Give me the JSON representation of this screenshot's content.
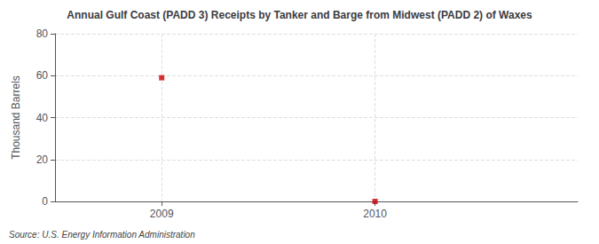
{
  "chart_data": {
    "type": "scatter",
    "title": "Annual Gulf Coast (PADD 3) Receipts by Tanker and Barge from Midwest (PADD 2) of Waxes",
    "ylabel": "Thousand Barrels",
    "source": "Source: U.S. Energy Information Administration",
    "x": [
      2009,
      2010
    ],
    "values": [
      59,
      0
    ],
    "color": "#cc0000",
    "marker": "square",
    "xlim": [
      2008.5,
      2010.95
    ],
    "xticks": [
      2009,
      2010
    ],
    "ylim": [
      0,
      80
    ],
    "yticks": [
      0,
      20,
      40,
      60,
      80
    ],
    "grid": true
  }
}
